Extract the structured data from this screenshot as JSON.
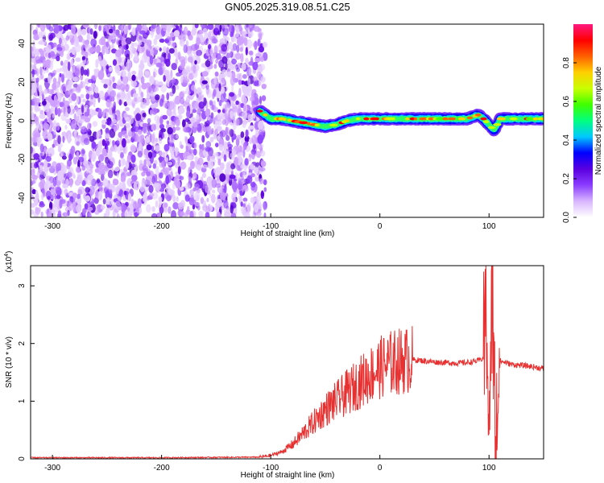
{
  "title": "GN05.2025.319.08.51.C25",
  "chart_data": [
    {
      "type": "heatmap",
      "xlabel": "Height of straight line (km)",
      "ylabel": "Frequency (Hz)",
      "xlim": [
        -320,
        150
      ],
      "ylim": [
        -50,
        50
      ],
      "xticks": [
        -300,
        -200,
        -100,
        0,
        100
      ],
      "yticks": [
        -40,
        -20,
        0,
        20,
        40
      ],
      "colorbar": {
        "label": "Normalized spectral amplitude",
        "range": [
          0,
          1
        ],
        "ticks": [
          0.0,
          0.2,
          0.4,
          0.6,
          0.8
        ],
        "colors": [
          "#ffffff",
          "#d9b6ff",
          "#8b3dff",
          "#5a00e0",
          "#0000ff",
          "#00c8ff",
          "#00ff80",
          "#40ff00",
          "#c8ff00",
          "#ffd000",
          "#ff6000",
          "#ff0000",
          "#ff1880"
        ]
      },
      "noise_region_x": [
        -320,
        -105
      ],
      "signal_track": {
        "x": [
          -110,
          -100,
          -90,
          -80,
          -70,
          -60,
          -50,
          -40,
          -30,
          -20,
          -10,
          0,
          10,
          20,
          30,
          40,
          50,
          60,
          70,
          80,
          90,
          95,
          100,
          105,
          110,
          120,
          130,
          140,
          150
        ],
        "y": [
          5,
          1,
          1,
          0,
          -1,
          -2,
          -3,
          -2,
          0,
          1,
          1,
          1,
          1,
          1,
          1,
          1,
          1,
          1,
          1,
          1,
          3,
          1,
          -2,
          -5,
          1,
          1,
          1,
          1,
          1
        ]
      },
      "grid": false
    },
    {
      "type": "line",
      "xlabel": "Height of straight line (km)",
      "ylabel": "SNR (10 * v/v)",
      "yscale_label": "(x10",
      "yscale_exp": "4",
      "yscale_close": ")",
      "xlim": [
        -320,
        150
      ],
      "ylim": [
        0,
        3.35
      ],
      "xticks": [
        -300,
        -200,
        -100,
        0,
        100
      ],
      "yticks": [
        0,
        1,
        2,
        3
      ],
      "color": "#e83030",
      "series": [
        {
          "x": [
            -320,
            -200,
            -110,
            -100,
            -90,
            -80,
            -70,
            -60,
            -50,
            -40,
            -30,
            -20,
            -10,
            0,
            10,
            20,
            30,
            40,
            50,
            60,
            70,
            80,
            90,
            95,
            98,
            100,
            103,
            106,
            110,
            120,
            130,
            140,
            150
          ],
          "values": [
            0.02,
            0.02,
            0.03,
            0.06,
            0.12,
            0.25,
            0.45,
            0.65,
            0.85,
            1.0,
            1.15,
            1.3,
            1.45,
            1.58,
            1.66,
            1.7,
            1.72,
            1.7,
            1.68,
            1.67,
            1.66,
            1.67,
            1.7,
            1.75,
            2.5,
            0.6,
            2.8,
            0.2,
            1.7,
            1.64,
            1.62,
            1.6,
            1.56
          ]
        }
      ],
      "grid": false
    }
  ]
}
